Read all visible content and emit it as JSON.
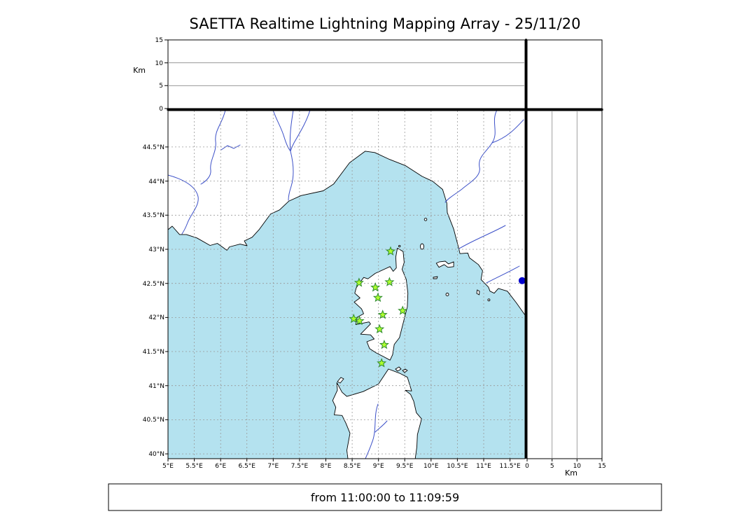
{
  "title": "SAETTA Realtime Lightning Mapping Array - 25/11/20",
  "caption": "from 11:00:00 to 11:09:59",
  "labels": {
    "alt_unit_left": "Km",
    "alt_unit_right": "Km"
  },
  "colors": {
    "sea": "#b4e2ef",
    "river": "#3c50c8",
    "grid": "#999999",
    "station_fill": "#adff2f",
    "station_edge": "#2e8b2e",
    "event_dot": "#0000cd"
  },
  "chart_data": {
    "type": "scatter",
    "subtype": "geographic-map-with-altitude-panels",
    "title": "SAETTA Realtime Lightning Mapping Array - 25/11/20",
    "time_window": "from 11:00:00 to 11:09:59",
    "projection": {
      "lon_range": [
        5.0,
        11.785
      ],
      "lat_range": [
        39.93,
        45.033
      ],
      "alt_range_km": [
        0,
        15
      ]
    },
    "x_ticks": [
      {
        "lon": 5,
        "label": "5°E"
      },
      {
        "lon": 5.5,
        "label": "5.5°E"
      },
      {
        "lon": 6,
        "label": "6°E"
      },
      {
        "lon": 6.5,
        "label": "6.5°E"
      },
      {
        "lon": 7,
        "label": "7°E"
      },
      {
        "lon": 7.5,
        "label": "7.5°E"
      },
      {
        "lon": 8,
        "label": "8°E"
      },
      {
        "lon": 8.5,
        "label": "8.5°E"
      },
      {
        "lon": 9,
        "label": "9°E"
      },
      {
        "lon": 9.5,
        "label": "9.5°E"
      },
      {
        "lon": 10,
        "label": "10°E"
      },
      {
        "lon": 10.5,
        "label": "10.5°E"
      },
      {
        "lon": 11,
        "label": "11°E"
      },
      {
        "lon": 11.5,
        "label": "11.5°E"
      }
    ],
    "y_ticks": [
      {
        "lat": 44.5,
        "label": "44.5°N"
      },
      {
        "lat": 44,
        "label": "44°N"
      },
      {
        "lat": 43.5,
        "label": "43.5°N"
      },
      {
        "lat": 43,
        "label": "43°N"
      },
      {
        "lat": 42.5,
        "label": "42.5°N"
      },
      {
        "lat": 42,
        "label": "42°N"
      },
      {
        "lat": 41.5,
        "label": "41.5°N"
      },
      {
        "lat": 41,
        "label": "41°N"
      },
      {
        "lat": 40.5,
        "label": "40.5°N"
      },
      {
        "lat": 40,
        "label": "40°N"
      }
    ],
    "alt_ticks": [
      {
        "km": 0,
        "label": "0"
      },
      {
        "km": 5,
        "label": "5"
      },
      {
        "km": 10,
        "label": "10"
      },
      {
        "km": 15,
        "label": "15"
      }
    ],
    "series": [
      {
        "name": "saetta-station",
        "marker": "star",
        "color": "#adff2f",
        "edge_color": "#2e8b2e",
        "points": [
          {
            "lon": 9.23,
            "lat": 42.97
          },
          {
            "lon": 8.63,
            "lat": 42.51
          },
          {
            "lon": 8.94,
            "lat": 42.44
          },
          {
            "lon": 9.21,
            "lat": 42.52
          },
          {
            "lon": 8.99,
            "lat": 42.29
          },
          {
            "lon": 9.46,
            "lat": 42.1
          },
          {
            "lon": 8.53,
            "lat": 41.98
          },
          {
            "lon": 8.64,
            "lat": 41.95
          },
          {
            "lon": 9.08,
            "lat": 42.04
          },
          {
            "lon": 9.02,
            "lat": 41.83
          },
          {
            "lon": 9.11,
            "lat": 41.6
          },
          {
            "lon": 9.06,
            "lat": 41.33
          }
        ]
      },
      {
        "name": "lightning-source",
        "marker": "circle",
        "color": "#0000cd",
        "size": 5,
        "points": [
          {
            "lon": 11.73,
            "lat": 42.54
          }
        ]
      }
    ]
  }
}
